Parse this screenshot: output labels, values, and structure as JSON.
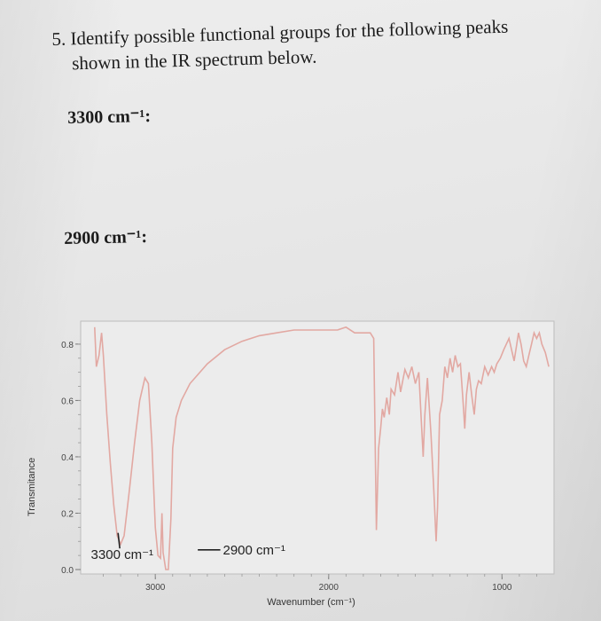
{
  "question": {
    "number": "5.",
    "line1": "Identify possible functional groups for the following peaks",
    "line2": "shown in the IR spectrum below."
  },
  "answers": [
    {
      "label": "3300 cm⁻¹:"
    },
    {
      "label": "2900 cm⁻¹:"
    }
  ],
  "chart_data": {
    "type": "line",
    "ylabel": "Transmitance",
    "xlabel": "Wavenumber (cm⁻¹)",
    "xlim": [
      3400,
      700
    ],
    "ylim": [
      0.0,
      0.85
    ],
    "x_ticks": [
      3000,
      2000,
      1000
    ],
    "y_ticks": [
      0.0,
      0.2,
      0.4,
      0.6,
      0.8
    ],
    "y_tick_labels": [
      "0.0",
      "0.2",
      "0.4",
      "0.6",
      "0.8"
    ],
    "x_tick_labels": [
      "3000",
      "2000",
      "1000"
    ],
    "line_color": "#e2a8a2",
    "annotations": [
      {
        "text": "3300 cm⁻¹",
        "x": 3300,
        "y": 0.05
      },
      {
        "text": "2900 cm⁻¹",
        "x": 2900,
        "y": 0.05
      }
    ],
    "series": [
      {
        "values": [
          [
            3350,
            0.86
          ],
          [
            3340,
            0.72
          ],
          [
            3325,
            0.76
          ],
          [
            3310,
            0.84
          ],
          [
            3300,
            0.76
          ],
          [
            3280,
            0.55
          ],
          [
            3260,
            0.38
          ],
          [
            3240,
            0.23
          ],
          [
            3220,
            0.12
          ],
          [
            3200,
            0.09
          ],
          [
            3180,
            0.12
          ],
          [
            3150,
            0.28
          ],
          [
            3120,
            0.45
          ],
          [
            3090,
            0.6
          ],
          [
            3060,
            0.68
          ],
          [
            3040,
            0.66
          ],
          [
            3020,
            0.45
          ],
          [
            3000,
            0.15
          ],
          [
            2985,
            0.05
          ],
          [
            2970,
            0.04
          ],
          [
            2962,
            0.2
          ],
          [
            2955,
            0.06
          ],
          [
            2940,
            0.0
          ],
          [
            2925,
            0.0
          ],
          [
            2910,
            0.18
          ],
          [
            2900,
            0.43
          ],
          [
            2880,
            0.54
          ],
          [
            2850,
            0.6
          ],
          [
            2800,
            0.66
          ],
          [
            2700,
            0.73
          ],
          [
            2600,
            0.78
          ],
          [
            2500,
            0.81
          ],
          [
            2400,
            0.83
          ],
          [
            2300,
            0.84
          ],
          [
            2200,
            0.85
          ],
          [
            2100,
            0.85
          ],
          [
            2000,
            0.85
          ],
          [
            1950,
            0.85
          ],
          [
            1900,
            0.86
          ],
          [
            1850,
            0.84
          ],
          [
            1800,
            0.84
          ],
          [
            1760,
            0.84
          ],
          [
            1740,
            0.82
          ],
          [
            1725,
            0.14
          ],
          [
            1712,
            0.43
          ],
          [
            1700,
            0.5
          ],
          [
            1690,
            0.57
          ],
          [
            1680,
            0.54
          ],
          [
            1665,
            0.61
          ],
          [
            1650,
            0.55
          ],
          [
            1640,
            0.64
          ],
          [
            1620,
            0.62
          ],
          [
            1600,
            0.7
          ],
          [
            1585,
            0.63
          ],
          [
            1560,
            0.71
          ],
          [
            1540,
            0.68
          ],
          [
            1520,
            0.72
          ],
          [
            1500,
            0.66
          ],
          [
            1480,
            0.7
          ],
          [
            1465,
            0.52
          ],
          [
            1455,
            0.4
          ],
          [
            1445,
            0.55
          ],
          [
            1430,
            0.68
          ],
          [
            1410,
            0.48
          ],
          [
            1395,
            0.3
          ],
          [
            1380,
            0.1
          ],
          [
            1372,
            0.22
          ],
          [
            1360,
            0.55
          ],
          [
            1345,
            0.6
          ],
          [
            1330,
            0.72
          ],
          [
            1315,
            0.68
          ],
          [
            1300,
            0.75
          ],
          [
            1285,
            0.7
          ],
          [
            1270,
            0.76
          ],
          [
            1255,
            0.72
          ],
          [
            1240,
            0.73
          ],
          [
            1225,
            0.6
          ],
          [
            1215,
            0.5
          ],
          [
            1205,
            0.62
          ],
          [
            1190,
            0.7
          ],
          [
            1175,
            0.62
          ],
          [
            1160,
            0.55
          ],
          [
            1148,
            0.64
          ],
          [
            1135,
            0.67
          ],
          [
            1120,
            0.66
          ],
          [
            1100,
            0.72
          ],
          [
            1080,
            0.69
          ],
          [
            1060,
            0.72
          ],
          [
            1045,
            0.7
          ],
          [
            1030,
            0.73
          ],
          [
            1010,
            0.75
          ],
          [
            990,
            0.78
          ],
          [
            975,
            0.8
          ],
          [
            960,
            0.82
          ],
          [
            945,
            0.78
          ],
          [
            930,
            0.74
          ],
          [
            915,
            0.8
          ],
          [
            905,
            0.84
          ],
          [
            890,
            0.8
          ],
          [
            875,
            0.74
          ],
          [
            860,
            0.72
          ],
          [
            845,
            0.76
          ],
          [
            830,
            0.8
          ],
          [
            815,
            0.84
          ],
          [
            800,
            0.82
          ],
          [
            785,
            0.84
          ],
          [
            770,
            0.8
          ],
          [
            750,
            0.77
          ],
          [
            730,
            0.72
          ]
        ]
      }
    ]
  }
}
